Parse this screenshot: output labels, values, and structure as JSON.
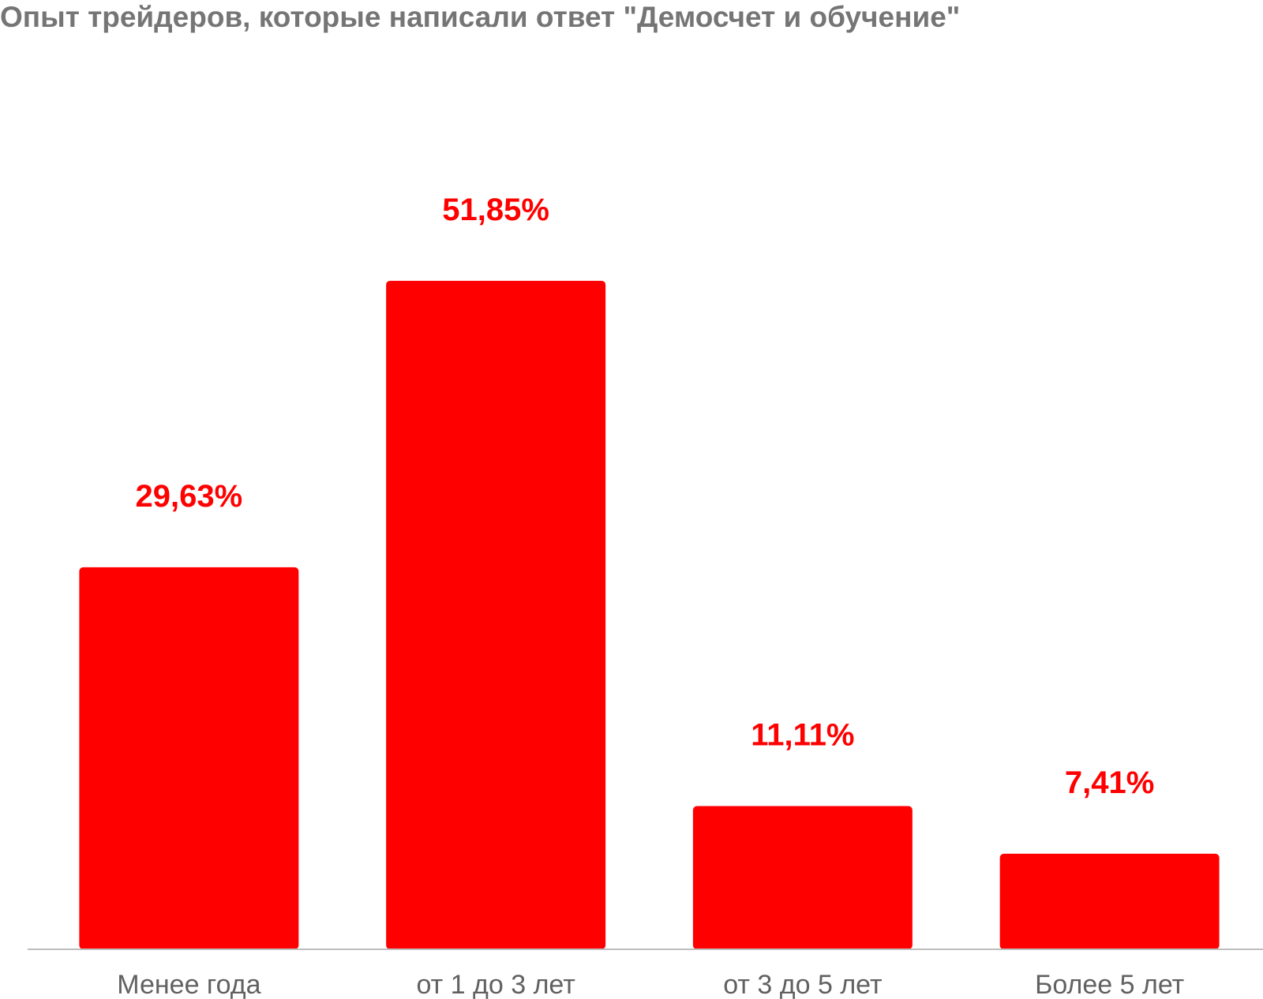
{
  "chart_data": {
    "type": "bar",
    "title": "Опыт трейдеров, которые написали ответ \"Демосчет и обучение\"",
    "categories": [
      "Менее года",
      "от 1 до 3 лет",
      "от 3 до 5 лет",
      "Более 5 лет"
    ],
    "values": [
      29.63,
      51.85,
      11.11,
      7.41
    ],
    "data_labels": [
      "29,63%",
      "51,85%",
      "11,11%",
      "7,41%"
    ],
    "xlabel": "",
    "ylabel": "",
    "ylim": [
      0,
      62
    ],
    "grid": false,
    "legend": "none",
    "colors": {
      "bar": "#ff0000",
      "data_label": "#ff0000",
      "title": "#757575",
      "tick_label": "#616161",
      "axis": "#bdbdbd"
    }
  }
}
